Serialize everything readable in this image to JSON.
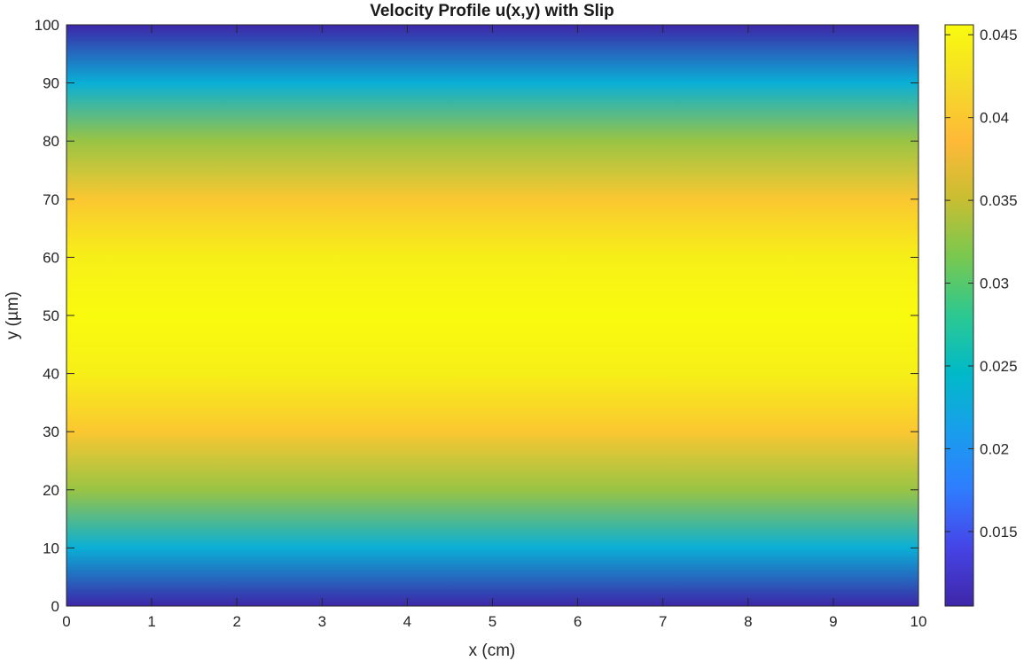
{
  "chart_data": {
    "type": "heatmap",
    "title": "Velocity Profile u(x,y) with Slip",
    "xlabel": "x (cm)",
    "ylabel": "y (µm)",
    "xlim": [
      0,
      10
    ],
    "ylim": [
      0,
      100
    ],
    "x_ticks": [
      0,
      1,
      2,
      3,
      4,
      5,
      6,
      7,
      8,
      9,
      10
    ],
    "y_ticks": [
      0,
      10,
      20,
      30,
      40,
      50,
      60,
      70,
      80,
      90,
      100
    ],
    "x_tick_labels": [
      "0",
      "1",
      "2",
      "3",
      "4",
      "5",
      "6",
      "7",
      "8",
      "9",
      "10"
    ],
    "y_tick_labels": [
      "0",
      "10",
      "20",
      "30",
      "40",
      "50",
      "60",
      "70",
      "80",
      "90",
      "100"
    ],
    "profile": {
      "y": [
        0,
        10,
        20,
        30,
        40,
        50,
        60,
        70,
        80,
        90,
        100
      ],
      "u": [
        0.0105,
        0.0232,
        0.033,
        0.04,
        0.0442,
        0.0456,
        0.0442,
        0.04,
        0.033,
        0.0232,
        0.0105
      ]
    },
    "colorbar": {
      "colormap": "parula",
      "range": [
        0.0105,
        0.0456
      ],
      "ticks": [
        0.015,
        0.02,
        0.025,
        0.03,
        0.035,
        0.04,
        0.045
      ],
      "tick_labels": [
        "0.015",
        "0.02",
        "0.025",
        "0.03",
        "0.035",
        "0.04",
        "0.045"
      ]
    },
    "grid": false
  }
}
